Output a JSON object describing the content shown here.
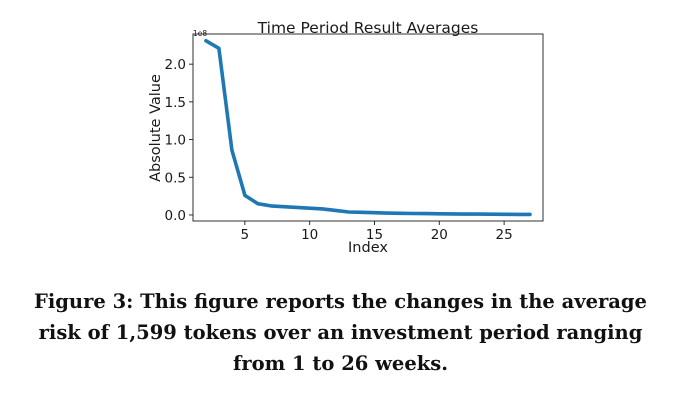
{
  "chart_data": {
    "type": "line",
    "title": "Time Period Result Averages",
    "xlabel": "Index",
    "ylabel": "Absolute Value",
    "y_scale_label": "1e8",
    "xlim": [
      1,
      28
    ],
    "ylim": [
      -0.08,
      2.4
    ],
    "x_ticks": [
      5,
      10,
      15,
      20,
      25
    ],
    "y_ticks": [
      0.0,
      0.5,
      1.0,
      1.5,
      2.0
    ],
    "x_tick_labels": [
      "5",
      "10",
      "15",
      "20",
      "25"
    ],
    "y_tick_labels": [
      "0.0",
      "0.5",
      "1.0",
      "1.5",
      "2.0"
    ],
    "grid": false,
    "colors": {
      "line": "#1f77b4"
    },
    "series": [
      {
        "x": [
          2,
          3,
          4,
          5,
          6,
          7,
          8,
          9,
          10,
          11,
          12,
          13,
          14,
          15,
          16,
          17,
          18,
          19,
          20,
          21,
          22,
          23,
          24,
          25,
          26,
          27
        ],
        "values": [
          2.31,
          2.21,
          0.86,
          0.26,
          0.15,
          0.12,
          0.11,
          0.1,
          0.09,
          0.08,
          0.06,
          0.04,
          0.035,
          0.03,
          0.025,
          0.022,
          0.02,
          0.018,
          0.016,
          0.014,
          0.012,
          0.011,
          0.01,
          0.009,
          0.008,
          0.007
        ]
      }
    ]
  },
  "caption": "Figure 3: This figure reports the changes in the average risk of 1,599 tokens over an investment period ranging from 1 to 26 weeks."
}
